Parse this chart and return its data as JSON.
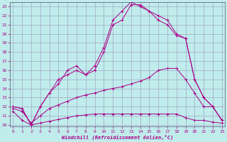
{
  "xlabel": "Windchill (Refroidissement éolien,°C)",
  "bg_color": "#c0ecec",
  "grid_color": "#9999bb",
  "line_color": "#aa0088",
  "x_ticks": [
    0,
    1,
    2,
    3,
    4,
    5,
    6,
    7,
    8,
    9,
    10,
    11,
    12,
    13,
    14,
    15,
    16,
    17,
    18,
    19,
    20,
    21,
    22,
    23
  ],
  "y_ticks": [
    10,
    11,
    12,
    13,
    14,
    15,
    16,
    17,
    18,
    19,
    20,
    21,
    22,
    23
  ],
  "xlim": [
    -0.3,
    23.3
  ],
  "ylim": [
    9.8,
    23.5
  ],
  "line1_x": [
    0,
    1,
    2,
    3,
    4,
    5,
    6,
    7,
    8,
    9,
    10,
    11,
    12,
    13,
    14,
    15,
    16,
    17,
    18,
    19,
    20,
    21,
    22,
    23
  ],
  "line1_y": [
    12.0,
    11.8,
    10.0,
    12.0,
    13.5,
    14.5,
    16.0,
    16.5,
    15.5,
    16.0,
    18.0,
    21.0,
    21.5,
    23.2,
    23.2,
    22.5,
    22.0,
    21.5,
    20.0,
    19.5,
    15.0,
    13.0,
    12.0,
    10.5
  ],
  "line2_x": [
    0,
    1,
    2,
    3,
    4,
    5,
    6,
    7,
    8,
    9,
    10,
    11,
    12,
    13,
    14,
    15,
    16,
    17,
    18,
    19,
    20,
    21,
    22,
    23
  ],
  "line2_y": [
    12.0,
    11.8,
    10.0,
    12.0,
    13.5,
    15.0,
    15.5,
    16.0,
    15.5,
    16.5,
    18.5,
    21.5,
    22.5,
    23.5,
    23.0,
    22.5,
    21.5,
    21.0,
    19.8,
    19.5,
    15.0,
    13.0,
    12.0,
    10.5
  ],
  "line3_x": [
    0,
    1,
    2,
    3,
    4,
    5,
    6,
    7,
    8,
    9,
    10,
    11,
    12,
    13,
    14,
    15,
    16,
    17,
    18,
    19,
    20,
    21,
    22,
    23
  ],
  "line3_y": [
    11.8,
    11.5,
    10.2,
    11.0,
    11.8,
    12.2,
    12.6,
    13.0,
    13.3,
    13.5,
    13.8,
    14.0,
    14.2,
    14.5,
    14.8,
    15.2,
    16.0,
    16.2,
    16.2,
    15.0,
    13.5,
    12.0,
    12.0,
    10.5
  ],
  "line4_x": [
    0,
    1,
    2,
    3,
    4,
    5,
    6,
    7,
    8,
    9,
    10,
    11,
    12,
    13,
    14,
    15,
    16,
    17,
    18,
    19,
    20,
    21,
    22,
    23
  ],
  "line4_y": [
    11.5,
    10.5,
    10.0,
    10.2,
    10.4,
    10.6,
    10.8,
    11.0,
    11.1,
    11.2,
    11.2,
    11.2,
    11.2,
    11.2,
    11.2,
    11.2,
    11.2,
    11.2,
    11.2,
    10.8,
    10.5,
    10.5,
    10.3,
    10.2
  ]
}
